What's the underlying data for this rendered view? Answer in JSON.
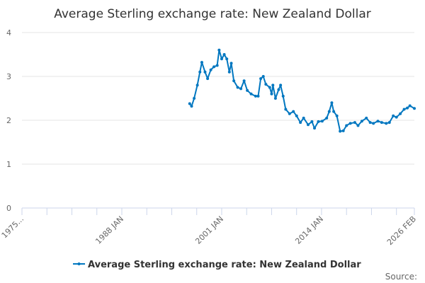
{
  "chart_data": {
    "type": "line",
    "title": "Average Sterling exchange rate: New Zealand Dollar",
    "xlabel": "",
    "ylabel": "",
    "xlim": [
      "1975-01",
      "2026-02"
    ],
    "ylim": [
      0,
      4
    ],
    "yticks": [
      "0",
      "1",
      "2",
      "3",
      "4"
    ],
    "xticks": [
      {
        "date": "1975-01",
        "label": "1975..."
      },
      {
        "date": "1988-01",
        "label": "1988 JAN"
      },
      {
        "date": "2001-01",
        "label": "2001 JAN"
      },
      {
        "date": "2014-01",
        "label": "2014 JAN"
      },
      {
        "date": "2026-02",
        "label": "2026 FEB"
      }
    ],
    "grid": true,
    "legend_position": "bottom",
    "source_label": "Source:",
    "series": [
      {
        "name": "Average Sterling exchange rate: New Zealand Dollar",
        "color": "#0077c0",
        "points": [
          [
            "1996-11",
            2.38
          ],
          [
            "1997-02",
            2.32
          ],
          [
            "1997-06",
            2.5
          ],
          [
            "1997-11",
            2.8
          ],
          [
            "1998-03",
            3.1
          ],
          [
            "1998-06",
            3.32
          ],
          [
            "1998-11",
            3.1
          ],
          [
            "1999-03",
            2.95
          ],
          [
            "1999-08",
            3.15
          ],
          [
            "2000-01",
            3.22
          ],
          [
            "2000-06",
            3.25
          ],
          [
            "2000-09",
            3.6
          ],
          [
            "2001-01",
            3.4
          ],
          [
            "2001-05",
            3.5
          ],
          [
            "2001-09",
            3.4
          ],
          [
            "2002-01",
            3.1
          ],
          [
            "2002-04",
            3.3
          ],
          [
            "2002-08",
            2.9
          ],
          [
            "2003-02",
            2.75
          ],
          [
            "2003-07",
            2.72
          ],
          [
            "2003-12",
            2.9
          ],
          [
            "2004-05",
            2.68
          ],
          [
            "2004-11",
            2.6
          ],
          [
            "2005-06",
            2.55
          ],
          [
            "2005-10",
            2.55
          ],
          [
            "2006-02",
            2.95
          ],
          [
            "2006-06",
            3.0
          ],
          [
            "2006-10",
            2.82
          ],
          [
            "2007-04",
            2.75
          ],
          [
            "2007-07",
            2.6
          ],
          [
            "2007-09",
            2.8
          ],
          [
            "2008-01",
            2.5
          ],
          [
            "2008-06",
            2.7
          ],
          [
            "2008-09",
            2.8
          ],
          [
            "2009-01",
            2.55
          ],
          [
            "2009-05",
            2.25
          ],
          [
            "2009-11",
            2.15
          ],
          [
            "2010-05",
            2.2
          ],
          [
            "2010-10",
            2.1
          ],
          [
            "2011-04",
            1.95
          ],
          [
            "2011-09",
            2.05
          ],
          [
            "2012-04",
            1.9
          ],
          [
            "2012-10",
            1.97
          ],
          [
            "2013-02",
            1.82
          ],
          [
            "2013-08",
            1.97
          ],
          [
            "2014-02",
            1.98
          ],
          [
            "2014-09",
            2.05
          ],
          [
            "2015-01",
            2.2
          ],
          [
            "2015-05",
            2.4
          ],
          [
            "2015-08",
            2.2
          ],
          [
            "2016-01",
            2.1
          ],
          [
            "2016-06",
            1.75
          ],
          [
            "2016-11",
            1.76
          ],
          [
            "2017-04",
            1.88
          ],
          [
            "2017-10",
            1.93
          ],
          [
            "2018-05",
            1.95
          ],
          [
            "2018-10",
            1.88
          ],
          [
            "2019-04",
            1.98
          ],
          [
            "2019-11",
            2.05
          ],
          [
            "2020-05",
            1.95
          ],
          [
            "2020-10",
            1.93
          ],
          [
            "2021-05",
            1.98
          ],
          [
            "2021-11",
            1.95
          ],
          [
            "2022-06",
            1.93
          ],
          [
            "2022-11",
            1.95
          ],
          [
            "2023-05",
            2.1
          ],
          [
            "2023-10",
            2.07
          ],
          [
            "2024-04",
            2.15
          ],
          [
            "2024-10",
            2.25
          ],
          [
            "2025-03",
            2.28
          ],
          [
            "2025-07",
            2.33
          ],
          [
            "2026-02",
            2.27
          ]
        ]
      }
    ]
  }
}
